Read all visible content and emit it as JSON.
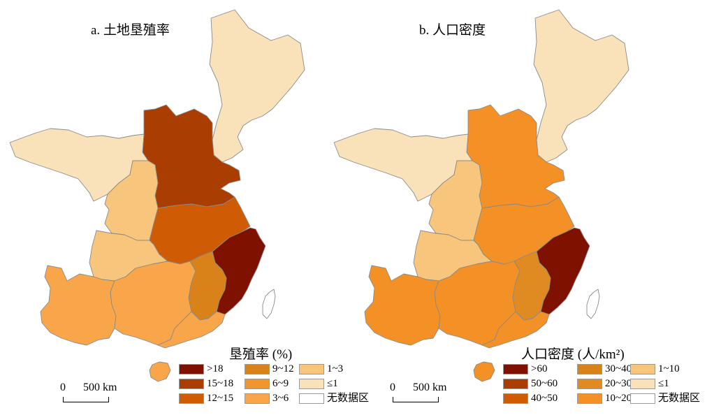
{
  "panels": [
    {
      "title": "a. 土地垦殖率",
      "legend_title": "垦殖率 (%)",
      "legend": [
        {
          "label": ">18",
          "color": "#7f1100"
        },
        {
          "label": "15~18",
          "color": "#a93d02"
        },
        {
          "label": "12~15",
          "color": "#cf5b05"
        },
        {
          "label": "9~12",
          "color": "#d9821a"
        },
        {
          "label": "6~9",
          "color": "#f0962c"
        },
        {
          "label": "3~6",
          "color": "#f9a64a"
        },
        {
          "label": "1~3",
          "color": "#f8c57c"
        },
        {
          "label": "≤1",
          "color": "#f9e2b9"
        },
        {
          "label": "无数据区",
          "color": "#ffffff"
        }
      ],
      "regions": {
        "northeast": "≤1",
        "north_central": "15~18",
        "inner_mongolia_west": "≤1",
        "shaanxi": "1~3",
        "sichuan_north": "1~3",
        "central": "12~15",
        "east_coast": ">18",
        "southwest": "3~6",
        "central_south": "3~6",
        "jiangxi": "9~12",
        "guangdong": "3~6",
        "hainan": "3~6"
      },
      "scale": {
        "zero": "0",
        "distance": "500 km"
      }
    },
    {
      "title": "b. 人口密度",
      "legend_title": "人口密度  (人/km²)",
      "legend": [
        {
          "label": ">60",
          "color": "#7f1100"
        },
        {
          "label": "50~60",
          "color": "#a93d02"
        },
        {
          "label": "40~50",
          "color": "#cf5b05"
        },
        {
          "label": "30~40",
          "color": "#d9821a"
        },
        {
          "label": "20~30",
          "color": "#e08a22"
        },
        {
          "label": "10~20",
          "color": "#f49126"
        },
        {
          "label": "1~10",
          "color": "#f8c57c"
        },
        {
          "label": "≤1",
          "color": "#f9e2b9"
        },
        {
          "label": "无数据区",
          "color": "#ffffff"
        }
      ],
      "regions": {
        "northeast": "≤1",
        "north_central": "10~20",
        "inner_mongolia_west": "≤1",
        "shaanxi": "1~10",
        "sichuan_north": "1~10",
        "central": "10~20",
        "east_coast": ">60",
        "southwest": "10~20",
        "central_south": "10~20",
        "jiangxi": "20~30",
        "guangdong": "10~20",
        "hainan": "10~20"
      },
      "scale": {
        "zero": "0",
        "distance": "500 km"
      }
    }
  ],
  "colors": {
    "border": "#8a8a8a",
    "taiwan": "#ffffff"
  }
}
